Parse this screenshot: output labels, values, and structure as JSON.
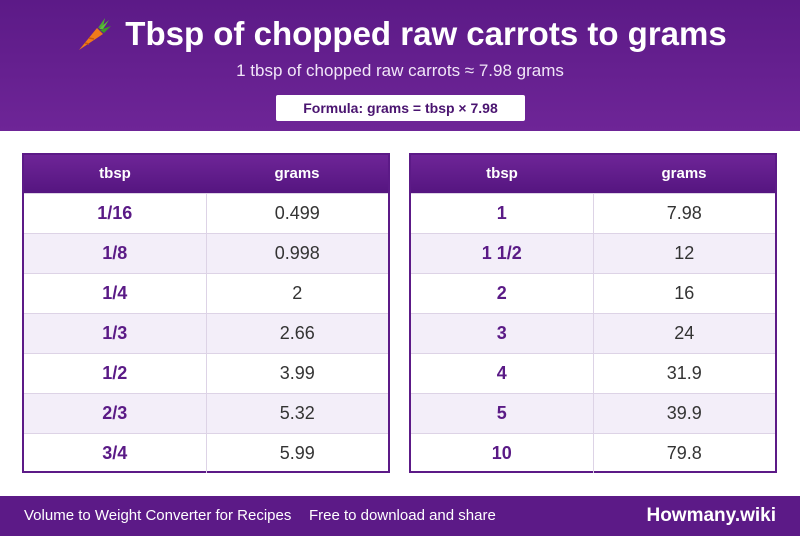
{
  "header": {
    "title": "Tbsp of chopped raw carrots to grams",
    "subtitle": "1 tbsp of chopped raw carrots ≈ 7.98 grams",
    "formula": "Formula: grams = tbsp × 7.98",
    "icon": "carrot-icon"
  },
  "tables": {
    "left": {
      "headers": [
        "tbsp",
        "grams"
      ],
      "rows": [
        {
          "tbsp": "1/16",
          "grams": "0.499"
        },
        {
          "tbsp": "1/8",
          "grams": "0.998"
        },
        {
          "tbsp": "1/4",
          "grams": "2"
        },
        {
          "tbsp": "1/3",
          "grams": "2.66"
        },
        {
          "tbsp": "1/2",
          "grams": "3.99"
        },
        {
          "tbsp": "2/3",
          "grams": "5.32"
        },
        {
          "tbsp": "3/4",
          "grams": "5.99"
        }
      ]
    },
    "right": {
      "headers": [
        "tbsp",
        "grams"
      ],
      "rows": [
        {
          "tbsp": "1",
          "grams": "7.98"
        },
        {
          "tbsp": "1 1/2",
          "grams": "12"
        },
        {
          "tbsp": "2",
          "grams": "16"
        },
        {
          "tbsp": "3",
          "grams": "24"
        },
        {
          "tbsp": "4",
          "grams": "31.9"
        },
        {
          "tbsp": "5",
          "grams": "39.9"
        },
        {
          "tbsp": "10",
          "grams": "79.8"
        }
      ]
    }
  },
  "footer": {
    "left_text": "Volume to Weight Converter for Recipes",
    "mid_text": "Free to download and share",
    "brand": "Howmany.wiki"
  },
  "colors": {
    "primary": "#5c1a87",
    "row_alt": "#f3eef9",
    "accent_text": "#5a1a86"
  }
}
